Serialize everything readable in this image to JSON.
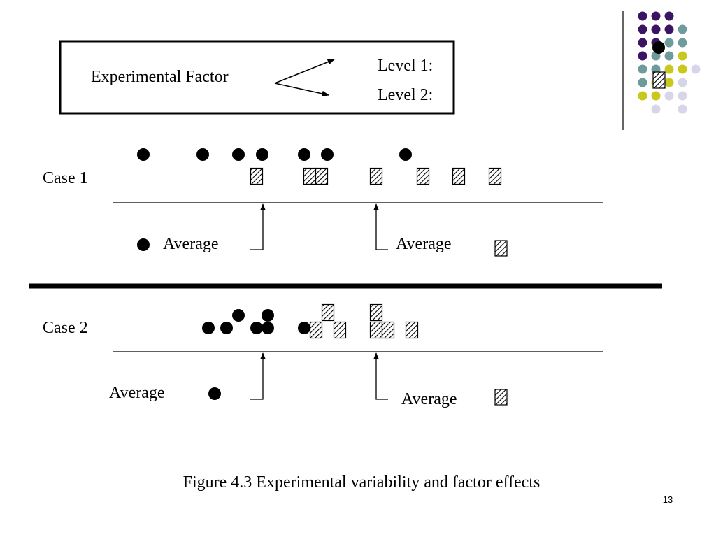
{
  "legend": {
    "factor_label": "Experimental Factor",
    "level1_label": "Level 1:",
    "level2_label": "Level 2:"
  },
  "case1": {
    "label": "Case 1",
    "average_left": "Average",
    "average_right": "Average"
  },
  "case2": {
    "label": "Case 2",
    "average_left": "Average",
    "average_right": "Average"
  },
  "caption": "Figure 4.3 Experimental variability and factor effects",
  "page_number": "13",
  "colors": {
    "purple": "#3b1464",
    "teal": "#6e9c9c",
    "yellow": "#c8c81e",
    "lavender": "#d6d6e8",
    "ink": "#000000"
  }
}
